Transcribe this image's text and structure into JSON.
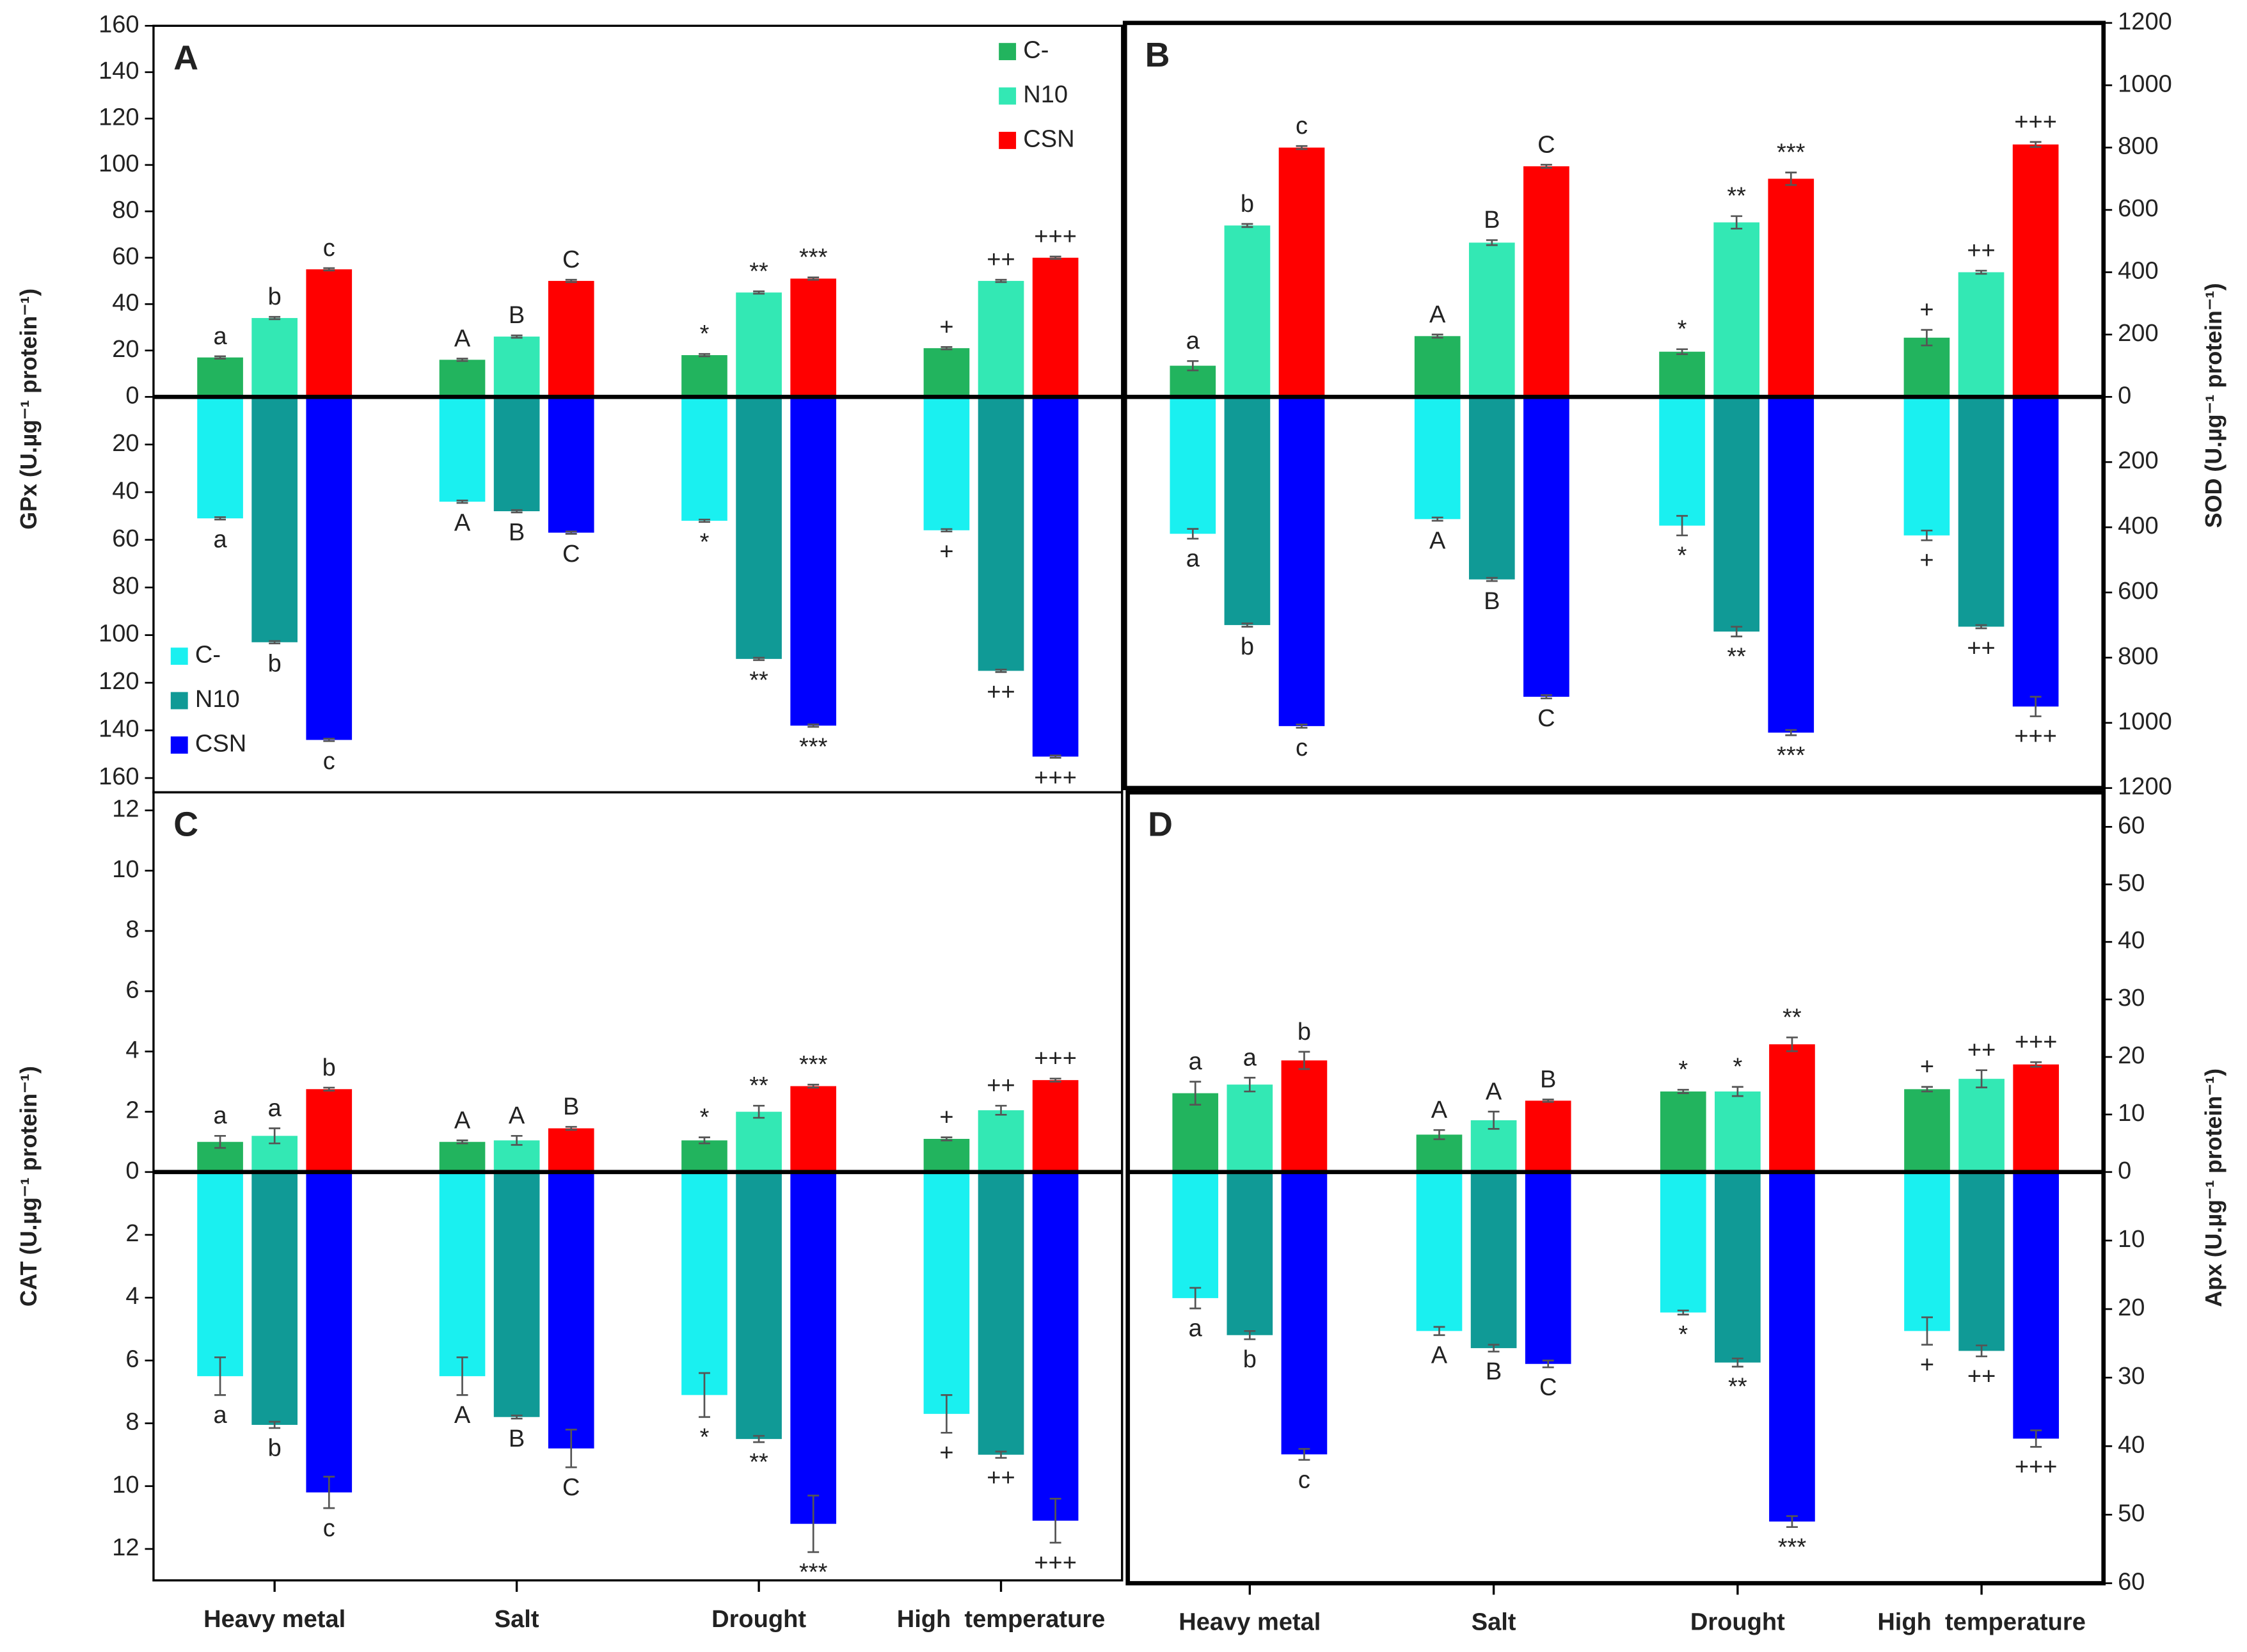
{
  "chart_data": [
    {
      "type": "bar",
      "title": "A",
      "ylabel": "GPx (U.µg⁻¹ protein⁻¹)",
      "axis_side": "left",
      "categories": [
        null,
        null,
        null,
        null
      ],
      "ylim": [
        -166,
        160
      ],
      "yticks": [
        160,
        140,
        120,
        100,
        80,
        60,
        40,
        20,
        0,
        {
          "value": -20,
          "label": "20"
        },
        {
          "value": -40,
          "label": "40"
        },
        {
          "value": -60,
          "label": "60"
        },
        {
          "value": -80,
          "label": "80"
        },
        {
          "value": -100,
          "label": "100"
        },
        {
          "value": -120,
          "label": "120"
        },
        {
          "value": -140,
          "label": "140"
        },
        {
          "value": -160,
          "label": "160"
        }
      ],
      "legend": {
        "positive": "upper right",
        "negative": "lower left"
      },
      "series": [
        {
          "name": "C-",
          "color": "#22b45e",
          "values": [
            17,
            16,
            18,
            21
          ],
          "errors": [
            0.5,
            0.5,
            0.5,
            0.5
          ],
          "labels": [
            "a",
            "A",
            "*",
            "+"
          ]
        },
        {
          "name": "N10",
          "color": "#33e8b4",
          "values": [
            34,
            26,
            45,
            50
          ],
          "errors": [
            0.5,
            0.5,
            0.5,
            0.5
          ],
          "labels": [
            "b",
            "B",
            "**",
            "++"
          ]
        },
        {
          "name": "CSN",
          "color": "#ff0000",
          "values": [
            55,
            50,
            51,
            60
          ],
          "errors": [
            0.5,
            0.5,
            0.5,
            0.5
          ],
          "labels": [
            "c",
            "C",
            "***",
            "+++"
          ]
        },
        {
          "name": "C-",
          "color": "#1af0f0",
          "values": [
            -51,
            -44,
            -52,
            -56
          ],
          "errors": [
            0.5,
            0.5,
            0.5,
            0.5
          ],
          "labels": [
            "a",
            "A",
            "*",
            "+"
          ]
        },
        {
          "name": "N10",
          "color": "#109a96",
          "values": [
            -103,
            -48,
            -110,
            -115
          ],
          "errors": [
            0.5,
            0.5,
            0.5,
            0.5
          ],
          "labels": [
            "b",
            "B",
            "**",
            "++"
          ]
        },
        {
          "name": "CSN",
          "color": "#0000ff",
          "values": [
            -144,
            -57,
            -138,
            -151
          ],
          "errors": [
            0.5,
            0.5,
            0.5,
            0.5
          ],
          "labels": [
            "c",
            "C",
            "***",
            "+++"
          ]
        }
      ]
    },
    {
      "type": "bar",
      "title": "B",
      "ylabel": "SOD (U.µg⁻¹ protein⁻¹)",
      "axis_side": "right",
      "categories": [
        null,
        null,
        null,
        null
      ],
      "ylim": [
        -1200,
        1200
      ],
      "yticks": [
        1200,
        1000,
        800,
        600,
        400,
        200,
        0,
        {
          "value": -200,
          "label": "200"
        },
        {
          "value": -400,
          "label": "400"
        },
        {
          "value": -600,
          "label": "600"
        },
        {
          "value": -800,
          "label": "800"
        },
        {
          "value": -1000,
          "label": "1000"
        },
        {
          "value": -1200,
          "label": "1200"
        }
      ],
      "series": [
        {
          "color": "#22b45e",
          "values": [
            100,
            195,
            145,
            190
          ],
          "errors": [
            15,
            5,
            8,
            25
          ],
          "labels": [
            "a",
            "A",
            "*",
            "+"
          ]
        },
        {
          "color": "#33e8b4",
          "values": [
            550,
            495,
            560,
            400
          ],
          "errors": [
            5,
            8,
            20,
            5
          ],
          "labels": [
            "b",
            "B",
            "**",
            "++"
          ]
        },
        {
          "color": "#ff0000",
          "values": [
            800,
            740,
            700,
            810
          ],
          "errors": [
            5,
            5,
            20,
            8
          ],
          "labels": [
            "c",
            "C",
            "***",
            "+++"
          ]
        },
        {
          "color": "#1af0f0",
          "values": [
            -420,
            -375,
            -395,
            -425
          ],
          "errors": [
            15,
            5,
            30,
            15
          ],
          "labels": [
            "a",
            "A",
            "*",
            "+"
          ]
        },
        {
          "color": "#109a96",
          "values": [
            -700,
            -560,
            -720,
            -705
          ],
          "errors": [
            5,
            5,
            15,
            5
          ],
          "labels": [
            "b",
            "B",
            "**",
            "++"
          ]
        },
        {
          "color": "#0000ff",
          "values": [
            -1010,
            -920,
            -1030,
            -950
          ],
          "errors": [
            5,
            5,
            8,
            30
          ],
          "labels": [
            "c",
            "C",
            "***",
            "+++"
          ]
        }
      ]
    },
    {
      "type": "bar",
      "title": "C",
      "ylabel": "CAT (U.µg⁻¹ protein⁻¹)",
      "axis_side": "left",
      "categories": [
        "Heavy metal",
        "Salt",
        "Drought",
        "High  temperature"
      ],
      "ylim": [
        -13,
        12.6
      ],
      "yticks": [
        12,
        10,
        8,
        6,
        4,
        2,
        0,
        {
          "value": -2,
          "label": "2"
        },
        {
          "value": -4,
          "label": "4"
        },
        {
          "value": -6,
          "label": "6"
        },
        {
          "value": -8,
          "label": "8"
        },
        {
          "value": -10,
          "label": "10"
        },
        {
          "value": -12,
          "label": "12"
        }
      ],
      "series": [
        {
          "color": "#22b45e",
          "values": [
            1.0,
            1.0,
            1.05,
            1.1
          ],
          "errors": [
            0.2,
            0.05,
            0.1,
            0.05
          ],
          "labels": [
            "a",
            "A",
            "*",
            "+"
          ]
        },
        {
          "color": "#33e8b4",
          "values": [
            1.2,
            1.05,
            2.0,
            2.05
          ],
          "errors": [
            0.25,
            0.15,
            0.2,
            0.15
          ],
          "labels": [
            "a",
            "A",
            "**",
            "++"
          ]
        },
        {
          "color": "#ff0000",
          "values": [
            2.75,
            1.45,
            2.85,
            3.05
          ],
          "errors": [
            0.05,
            0.05,
            0.05,
            0.05
          ],
          "labels": [
            "b",
            "B",
            "***",
            "+++"
          ]
        },
        {
          "color": "#1af0f0",
          "values": [
            -6.5,
            -6.5,
            -7.1,
            -7.7
          ],
          "errors": [
            0.6,
            0.6,
            0.7,
            0.6
          ],
          "labels": [
            "a",
            "A",
            "*",
            "+"
          ]
        },
        {
          "color": "#109a96",
          "values": [
            -8.05,
            -7.8,
            -8.5,
            -9.0
          ],
          "errors": [
            0.1,
            0.05,
            0.1,
            0.1
          ],
          "labels": [
            "b",
            "B",
            "**",
            "++"
          ]
        },
        {
          "color": "#0000ff",
          "values": [
            -10.2,
            -8.8,
            -11.2,
            -11.1
          ],
          "errors": [
            0.5,
            0.6,
            0.9,
            0.7
          ],
          "labels": [
            "c",
            "C",
            "***",
            "+++"
          ]
        }
      ]
    },
    {
      "type": "bar",
      "title": "D",
      "ylabel": "Apx (U.µg⁻¹ protein⁻¹)",
      "axis_side": "right",
      "categories": [
        "Heavy metal",
        "Salt",
        "Drought",
        "High  temperature"
      ],
      "ylim": [
        -60,
        66
      ],
      "yticks": [
        60,
        50,
        40,
        30,
        20,
        10,
        0,
        {
          "value": -10,
          "label": "10"
        },
        {
          "value": -20,
          "label": "20"
        },
        {
          "value": -30,
          "label": "30"
        },
        {
          "value": -40,
          "label": "40"
        },
        {
          "value": -50,
          "label": "50"
        },
        {
          "value": -60,
          "label": "60"
        }
      ],
      "series": [
        {
          "color": "#22b45e",
          "values": [
            13.7,
            6.5,
            14,
            14.4
          ],
          "errors": [
            2,
            0.8,
            0.3,
            0.4
          ],
          "labels": [
            "a",
            "A",
            "*",
            "+"
          ]
        },
        {
          "color": "#33e8b4",
          "values": [
            15.2,
            9,
            14,
            16.2
          ],
          "errors": [
            1.2,
            1.5,
            0.8,
            1.5
          ],
          "labels": [
            "a",
            "A",
            "*",
            "++"
          ]
        },
        {
          "color": "#ff0000",
          "values": [
            19.4,
            12.4,
            22.2,
            18.7
          ],
          "errors": [
            1.5,
            0.2,
            1.2,
            0.4
          ],
          "labels": [
            "b",
            "B",
            "**",
            "+++"
          ]
        },
        {
          "color": "#1af0f0",
          "values": [
            -18.4,
            -23.2,
            -20.5,
            -23.2
          ],
          "errors": [
            1.5,
            0.6,
            0.3,
            2
          ],
          "labels": [
            "a",
            "A",
            "*",
            "+"
          ]
        },
        {
          "color": "#109a96",
          "values": [
            -23.8,
            -25.7,
            -27.8,
            -26.1
          ],
          "errors": [
            0.6,
            0.5,
            0.6,
            0.8
          ],
          "labels": [
            "b",
            "B",
            "**",
            "++"
          ]
        },
        {
          "color": "#0000ff",
          "values": [
            -41.2,
            -28,
            -51,
            -38.9
          ],
          "errors": [
            0.8,
            0.5,
            0.8,
            1.2
          ],
          "labels": [
            "c",
            "C",
            "***",
            "+++"
          ]
        }
      ]
    }
  ]
}
